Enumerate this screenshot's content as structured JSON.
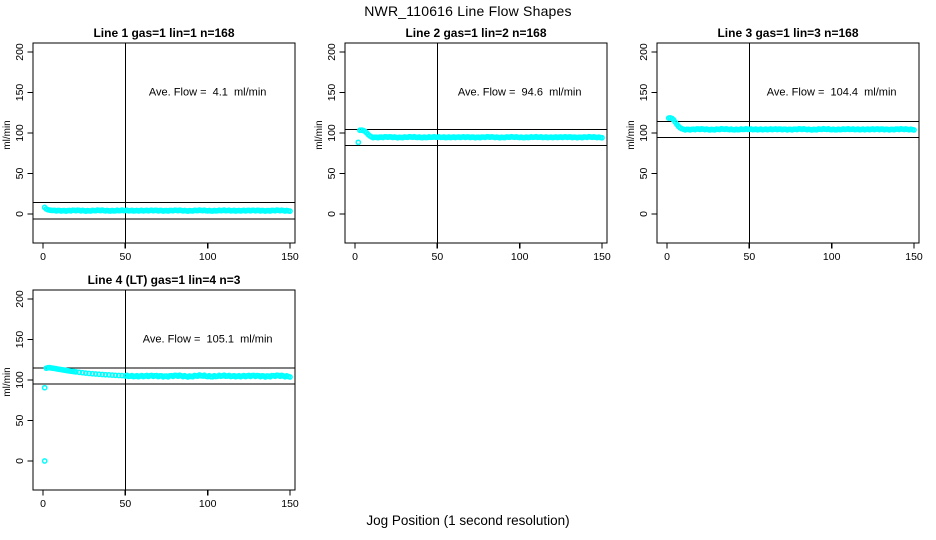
{
  "figure": {
    "title": "NWR_110616  Line Flow Shapes",
    "xlabel": "Jog Position (1 second resolution)",
    "point_color": "#00ffff",
    "axis_color": "#000000",
    "background": "#ffffff"
  },
  "chart_data": [
    {
      "type": "scatter",
      "title": "Line 1 gas=1 lin=1 n=168",
      "ave_flow_ml_min": 4.1,
      "ave_label": "Ave. Flow =  4.1  ml/min",
      "ave_label_pos": [
        100,
        151
      ],
      "ylabel": "ml/min",
      "xticks": [
        0,
        50,
        100,
        150
      ],
      "yticks": [
        0,
        50,
        100,
        150,
        200
      ],
      "xlim": [
        -6,
        153
      ],
      "ylim": [
        -36,
        211
      ],
      "vline_x": 50,
      "hlines": [
        14.1,
        -5.9
      ],
      "lead_in": [
        [
          1,
          8.2
        ],
        [
          2,
          6.2
        ],
        [
          3,
          5.2
        ],
        [
          4,
          4.8
        ],
        [
          5,
          4.5
        ]
      ],
      "band": {
        "x_start": 6,
        "x_end": 150,
        "level": 4.2,
        "amp": 0.7
      },
      "outliers": []
    },
    {
      "type": "scatter",
      "title": "Line 2 gas=1 lin=2 n=168",
      "ave_flow_ml_min": 94.6,
      "ave_label": "Ave. Flow =  94.6  ml/min",
      "ave_label_pos": [
        100,
        151
      ],
      "ylabel": "ml/min",
      "xticks": [
        0,
        50,
        100,
        150
      ],
      "yticks": [
        0,
        50,
        100,
        150,
        200
      ],
      "xlim": [
        -6,
        153
      ],
      "ylim": [
        -36,
        211
      ],
      "vline_x": 50,
      "hlines": [
        104.6,
        84.6
      ],
      "lead_in": [
        [
          3,
          103.4
        ],
        [
          4,
          103.6
        ],
        [
          5,
          103.1
        ],
        [
          6,
          102.2
        ],
        [
          7,
          100.4
        ],
        [
          8,
          98.2
        ],
        [
          9,
          96.4
        ],
        [
          10,
          95.3
        ]
      ],
      "band": {
        "x_start": 11,
        "x_end": 150,
        "level": 94.8,
        "amp": 0.7
      },
      "outliers": [
        [
          2,
          88.5
        ]
      ]
    },
    {
      "type": "scatter",
      "title": "Line 3 gas=1 lin=3 n=168",
      "ave_flow_ml_min": 104.4,
      "ave_label": "Ave. Flow =  104.4  ml/min",
      "ave_label_pos": [
        100,
        151
      ],
      "ylabel": "ml/min",
      "xticks": [
        0,
        50,
        100,
        150
      ],
      "yticks": [
        0,
        50,
        100,
        150,
        200
      ],
      "xlim": [
        -6,
        153
      ],
      "ylim": [
        -36,
        211
      ],
      "vline_x": 50,
      "hlines": [
        114.4,
        94.4
      ],
      "lead_in": [
        [
          1,
          118.4
        ],
        [
          2,
          118.7
        ],
        [
          3,
          118.0
        ],
        [
          4,
          116.2
        ],
        [
          5,
          113.4
        ],
        [
          6,
          110.6
        ],
        [
          7,
          108.2
        ],
        [
          8,
          106.4
        ],
        [
          9,
          105.3
        ]
      ],
      "band": {
        "x_start": 10,
        "x_end": 150,
        "level": 104.5,
        "amp": 0.8
      },
      "outliers": []
    },
    {
      "type": "scatter",
      "title": "Line 4 (LT) gas=1 lin=4 n=3",
      "ave_flow_ml_min": 105.1,
      "ave_label": "Ave. Flow =  105.1  ml/min",
      "ave_label_pos": [
        100,
        151
      ],
      "ylabel": "ml/min",
      "xticks": [
        0,
        50,
        100,
        150
      ],
      "yticks": [
        0,
        50,
        100,
        150,
        200
      ],
      "xlim": [
        -6,
        153
      ],
      "ylim": [
        -36,
        211
      ],
      "vline_x": 50,
      "hlines": [
        115.1,
        95.1
      ],
      "lead_in": [
        [
          2,
          114.6
        ],
        [
          3,
          115.1
        ],
        [
          4,
          115.3
        ],
        [
          5,
          114.9
        ],
        [
          6,
          114.6
        ],
        [
          7,
          114.3
        ],
        [
          8,
          113.9
        ],
        [
          9,
          113.5
        ],
        [
          10,
          113.2
        ],
        [
          11,
          112.9
        ],
        [
          12,
          112.5
        ],
        [
          13,
          112.2
        ],
        [
          14,
          111.8
        ],
        [
          15,
          111.5
        ],
        [
          16,
          111.2
        ],
        [
          17,
          110.9
        ],
        [
          18,
          110.6
        ],
        [
          19,
          110.3
        ],
        [
          20,
          110.0
        ],
        [
          22,
          109.5
        ],
        [
          24,
          109.0
        ],
        [
          26,
          108.5
        ],
        [
          28,
          108.1
        ],
        [
          30,
          107.7
        ],
        [
          32,
          107.4
        ],
        [
          34,
          107.1
        ],
        [
          36,
          106.8
        ],
        [
          38,
          106.5
        ],
        [
          40,
          106.3
        ],
        [
          42,
          106.0
        ],
        [
          44,
          105.8
        ],
        [
          46,
          105.6
        ],
        [
          48,
          105.4
        ]
      ],
      "band": {
        "x_start": 50,
        "x_end": 150,
        "level": 104.9,
        "amp": 1.3
      },
      "outliers": [
        [
          1,
          0
        ],
        [
          1,
          90.5
        ]
      ]
    }
  ]
}
